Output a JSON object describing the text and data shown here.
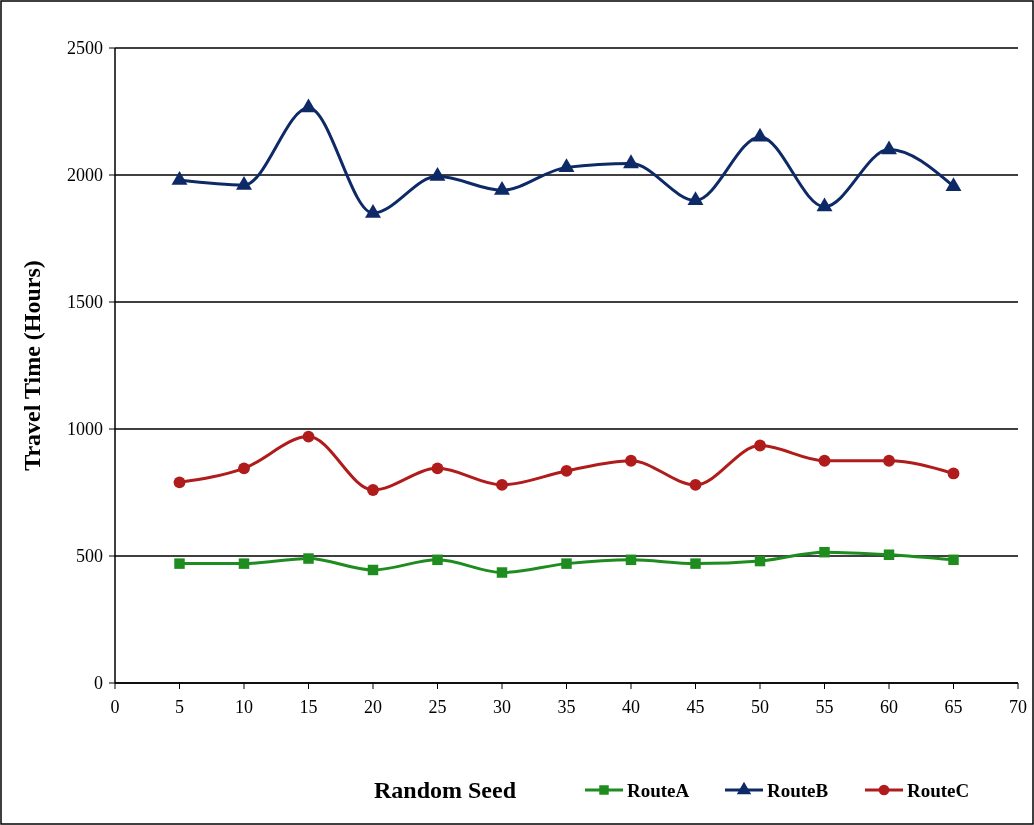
{
  "chart_data": {
    "type": "line",
    "xlabel": "Random Seed",
    "ylabel": "Travel Time (Hours)",
    "x": [
      5,
      10,
      15,
      20,
      25,
      30,
      35,
      40,
      45,
      50,
      55,
      60,
      65
    ],
    "series": [
      {
        "name": "RouteA",
        "color": "#1e8c1e",
        "marker": "square",
        "values": [
          470,
          470,
          490,
          445,
          485,
          435,
          470,
          485,
          470,
          480,
          515,
          505,
          485
        ]
      },
      {
        "name": "RouteB",
        "color": "#0d2a66",
        "marker": "triangle",
        "values": [
          1980,
          1960,
          2265,
          1850,
          1995,
          1940,
          2030,
          2045,
          1900,
          2150,
          1875,
          2100,
          1955
        ]
      },
      {
        "name": "RouteC",
        "color": "#b01c1c",
        "marker": "circle",
        "values": [
          790,
          845,
          970,
          760,
          845,
          780,
          835,
          875,
          780,
          935,
          875,
          875,
          825
        ]
      }
    ],
    "xlim": [
      0,
      70
    ],
    "xticks": [
      0,
      5,
      10,
      15,
      20,
      25,
      30,
      35,
      40,
      45,
      50,
      55,
      60,
      65,
      70
    ],
    "ylim": [
      0,
      2500
    ],
    "yticks": [
      0,
      500,
      1000,
      1500,
      2000,
      2500
    ],
    "grid": "y",
    "legend": "bottom"
  }
}
